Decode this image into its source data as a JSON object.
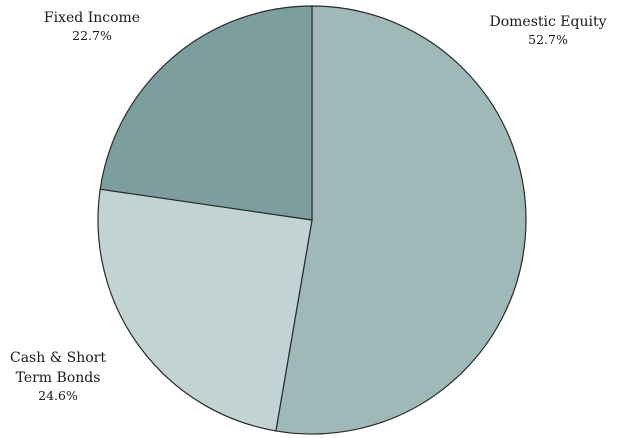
{
  "chart_data": {
    "type": "pie",
    "title": "",
    "start_angle_deg": 0,
    "direction": "clockwise",
    "legend": "none",
    "slices": [
      {
        "name": "Domestic Equity",
        "value": 52.7,
        "value_label": "52.7%",
        "color": "#9fb8b8",
        "name_lines": [
          "Domestic Equity"
        ]
      },
      {
        "name": "Cash & Short Term Bonds",
        "value": 24.6,
        "value_label": "24.6%",
        "color": "#c2d3d3",
        "name_lines": [
          "Cash & Short",
          "Term Bonds"
        ]
      },
      {
        "name": "Fixed Income",
        "value": 22.7,
        "value_label": "22.7%",
        "color": "#7d9e9e",
        "name_lines": [
          "Fixed Income"
        ]
      }
    ]
  }
}
